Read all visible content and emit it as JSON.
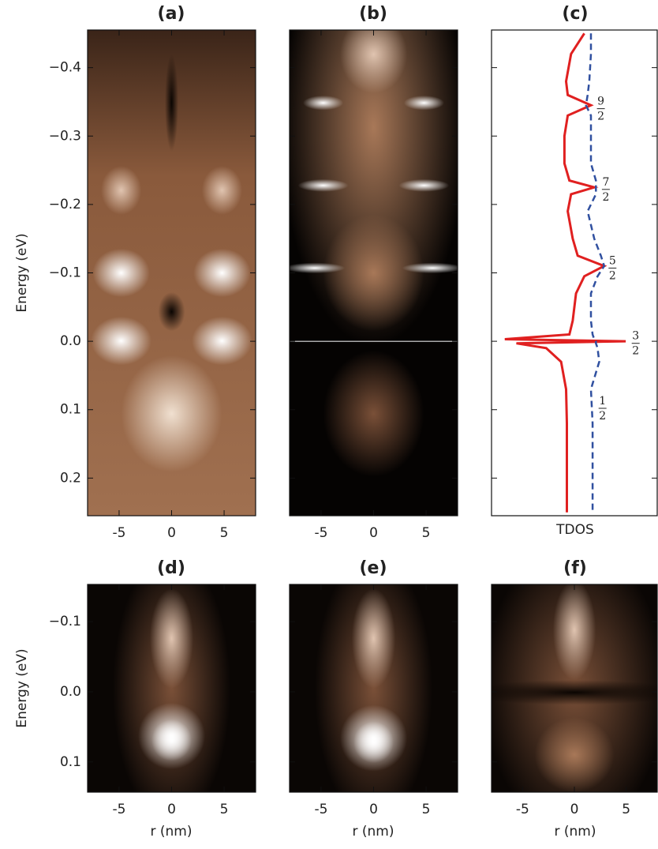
{
  "chart_data": [
    {
      "type": "heatmap",
      "title": "(a)",
      "ylabel": "Energy (eV)",
      "xlim": [
        -8,
        8
      ],
      "xticks": [
        -5,
        0,
        5
      ],
      "ylim": [
        -0.455,
        0.255
      ],
      "yticks": [
        {
          "value": -0.4,
          "label": "−0.4"
        },
        {
          "value": -0.3,
          "label": "−0.3"
        },
        {
          "value": -0.2,
          "label": "−0.2"
        },
        {
          "value": -0.1,
          "label": "−0.1"
        },
        {
          "value": 0,
          "label": "0.0"
        },
        0.1,
        0.2
      ],
      "show_ytick_labels": true
    },
    {
      "type": "heatmap",
      "title": "(b)",
      "xlim": [
        -8,
        8
      ],
      "xticks": [
        -5,
        0,
        5
      ],
      "ylim": [
        -0.455,
        0.255
      ],
      "yticks": [
        -0.4,
        -0.3,
        -0.2,
        -0.1,
        0,
        0.1,
        0.2
      ],
      "show_ytick_labels": false
    },
    {
      "type": "line",
      "title": "(c)",
      "xlabel": "TDOS",
      "xlim": [
        0,
        1
      ],
      "ylim": [
        -0.455,
        0.255
      ],
      "yticks": [
        -0.4,
        -0.3,
        -0.2,
        -0.1,
        0,
        0.1,
        0.2
      ],
      "show_ytick_labels": false,
      "y": [
        -0.45,
        -0.42,
        -0.38,
        -0.36,
        -0.345,
        -0.33,
        -0.3,
        -0.26,
        -0.235,
        -0.225,
        -0.215,
        -0.19,
        -0.15,
        -0.125,
        -0.11,
        -0.095,
        -0.07,
        -0.03,
        -0.01,
        -0.003,
        0,
        0.003,
        0.01,
        0.03,
        0.07,
        0.12,
        0.18,
        0.25
      ],
      "series": [
        {
          "color": "#e02020",
          "dash": false,
          "values": [
            0.56,
            0.48,
            0.45,
            0.46,
            0.6,
            0.46,
            0.44,
            0.44,
            0.47,
            0.62,
            0.48,
            0.46,
            0.49,
            0.52,
            0.68,
            0.56,
            0.51,
            0.49,
            0.47,
            0.08,
            0.81,
            0.15,
            0.33,
            0.42,
            0.45,
            0.455,
            0.455,
            0.455
          ]
        },
        {
          "color": "#3050a0",
          "dash": true,
          "values": [
            0.6,
            0.6,
            0.59,
            0.58,
            0.57,
            0.6,
            0.6,
            0.6,
            0.63,
            0.63,
            0.63,
            0.58,
            0.62,
            0.66,
            0.68,
            0.64,
            0.6,
            0.6,
            0.61,
            0.62,
            0.63,
            0.63,
            0.64,
            0.65,
            0.6,
            0.61,
            0.61,
            0.61
          ]
        }
      ],
      "annotations": [
        {
          "num": "9",
          "den": "2"
        },
        {
          "num": "7",
          "den": "2"
        },
        {
          "num": "5",
          "den": "2"
        },
        {
          "num": "3",
          "den": "2"
        },
        {
          "num": "1",
          "den": "2"
        }
      ]
    },
    {
      "type": "heatmap",
      "title": "(d)",
      "ylabel": "Energy (eV)",
      "xlabel": "r (nm)",
      "xlim": [
        -8,
        8
      ],
      "xticks": [
        -5,
        0,
        5
      ],
      "ylim": [
        -0.153,
        0.143
      ],
      "yticks": [
        {
          "value": -0.1,
          "label": "−0.1"
        },
        {
          "value": 0,
          "label": "0.0"
        },
        0.1
      ],
      "show_ytick_labels": true
    },
    {
      "type": "heatmap",
      "title": "(e)",
      "xlabel": "r (nm)",
      "xlim": [
        -8,
        8
      ],
      "xticks": [
        -5,
        0,
        5
      ],
      "ylim": [
        -0.153,
        0.143
      ],
      "yticks": [
        -0.1,
        0,
        0.1
      ],
      "show_ytick_labels": false
    },
    {
      "type": "heatmap",
      "title": "(f)",
      "xlabel": "r (nm)",
      "xlim": [
        -8,
        8
      ],
      "xticks": [
        -5,
        0,
        5
      ],
      "ylim": [
        -0.153,
        0.143
      ],
      "yticks": [
        -0.1,
        0,
        0.1
      ],
      "show_ytick_labels": false
    }
  ]
}
